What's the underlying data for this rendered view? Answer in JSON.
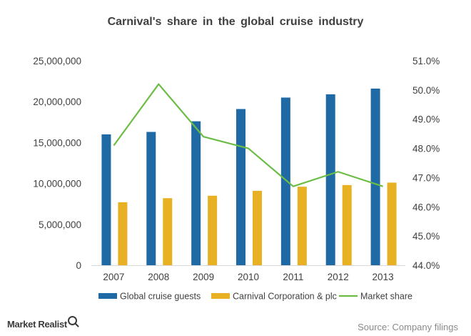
{
  "chart_data": {
    "type": "bar",
    "title": "Carnival's share in the global cruise industry",
    "categories": [
      "2007",
      "2008",
      "2009",
      "2010",
      "2011",
      "2012",
      "2013"
    ],
    "series": [
      {
        "name": "Global cruise guests",
        "type": "bar",
        "axis": "left",
        "color": "#1f6aa5",
        "values": [
          16000000,
          16300000,
          17600000,
          19100000,
          20500000,
          20900000,
          21600000
        ]
      },
      {
        "name": "Carnival Corporation & plc",
        "type": "bar",
        "axis": "left",
        "color": "#e8b023",
        "values": [
          7700000,
          8200000,
          8500000,
          9100000,
          9600000,
          9800000,
          10100000
        ]
      },
      {
        "name": "Market share",
        "type": "line",
        "axis": "right",
        "color": "#6cbd45",
        "values": [
          48.1,
          50.2,
          48.4,
          48.0,
          46.7,
          47.2,
          46.7
        ]
      }
    ],
    "left_axis": {
      "ylim": [
        0,
        25000000
      ],
      "ticks": [
        "0",
        "5,000,000",
        "10,000,000",
        "15,000,000",
        "20,000,000",
        "25,000,000"
      ]
    },
    "right_axis": {
      "ylim": [
        44.0,
        51.0
      ],
      "ticks": [
        "44.0%",
        "45.0%",
        "46.0%",
        "47.0%",
        "48.0%",
        "49.0%",
        "50.0%",
        "51.0%"
      ]
    },
    "grid": false,
    "legend_position": "bottom"
  },
  "footer": {
    "brand": "Market Realist",
    "source": "Source: Company filings"
  }
}
